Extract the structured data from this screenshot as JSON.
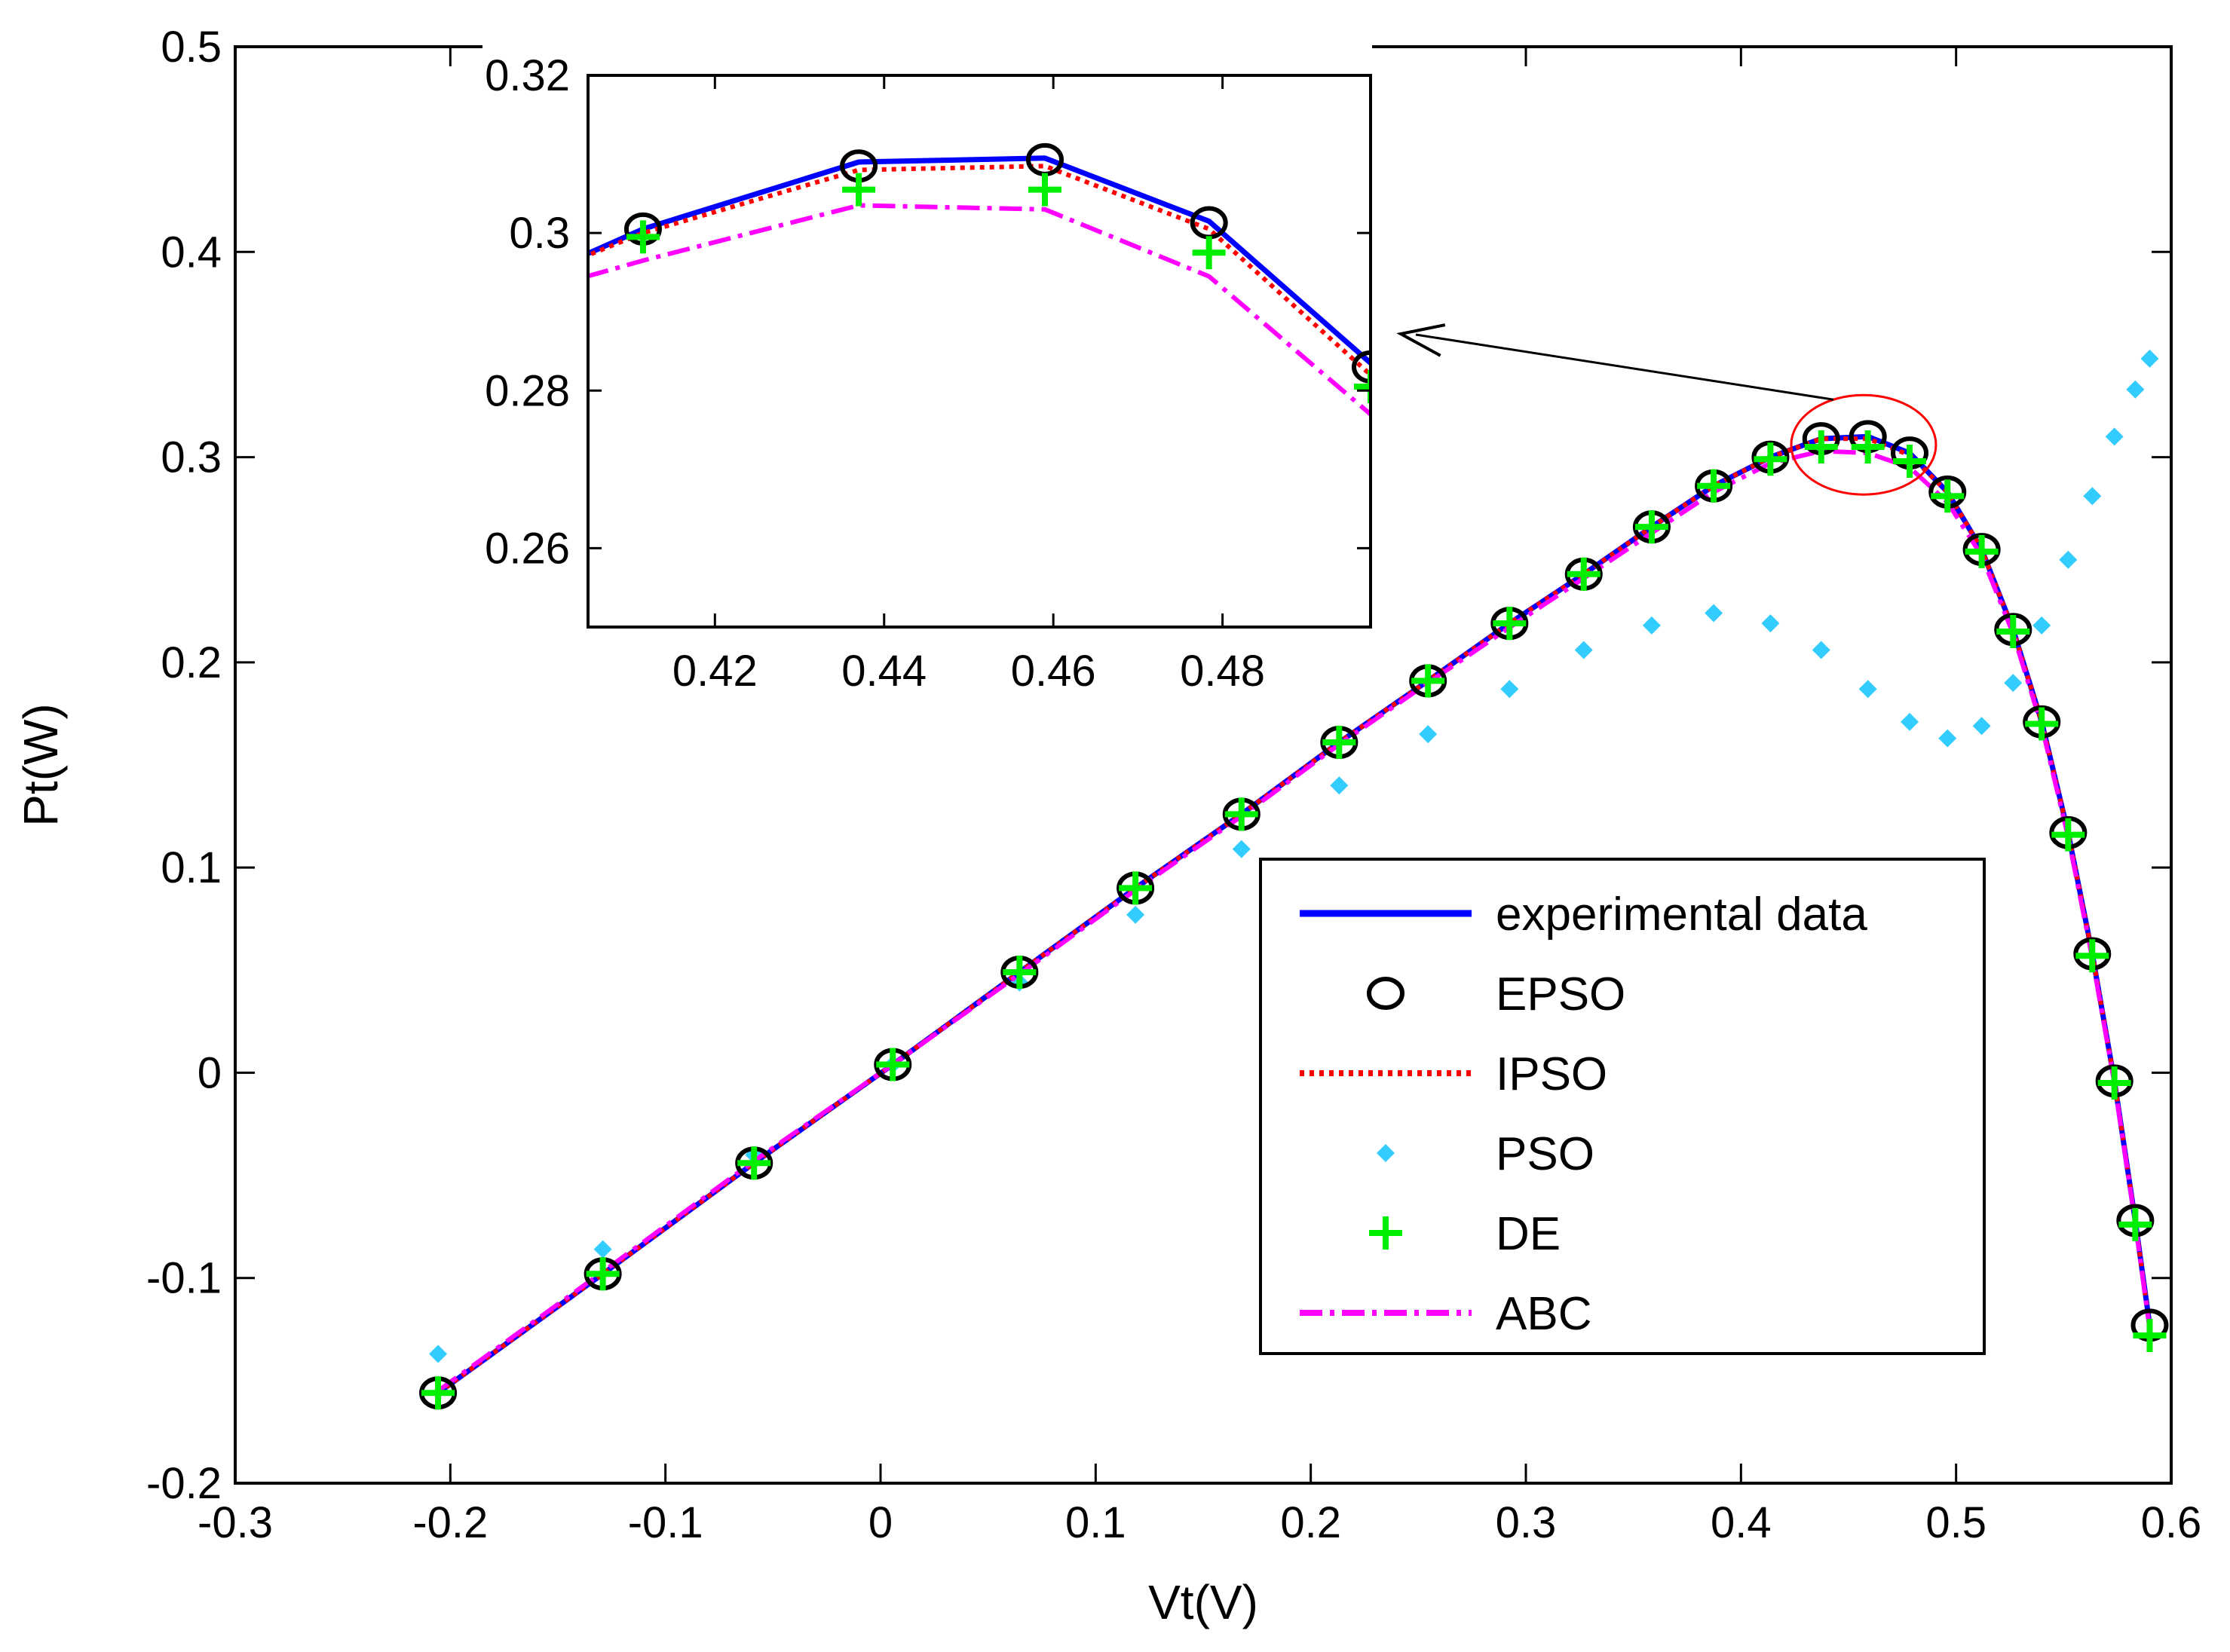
{
  "chart_data": {
    "type": "line",
    "xlabel": "Vt(V)",
    "ylabel": "Pt(W)",
    "xlim": [
      -0.3,
      0.6
    ],
    "ylim": [
      -0.2,
      0.5
    ],
    "xticks": [
      "-0.3",
      "-0.2",
      "-0.1",
      "0",
      "0.1",
      "0.2",
      "0.3",
      "0.4",
      "0.5",
      "0.6"
    ],
    "yticks": [
      "-0.2",
      "-0.1",
      "0",
      "0.1",
      "0.2",
      "0.3",
      "0.4",
      "0.5"
    ],
    "legend_position": "lower-right",
    "series": [
      {
        "name": "experimental data",
        "style": "solid",
        "color": "#0000ff",
        "x": [
          -0.2057,
          -0.1291,
          -0.0588,
          0.0057,
          0.0646,
          0.1185,
          0.1678,
          0.2132,
          0.2545,
          0.2924,
          0.3269,
          0.3585,
          0.3873,
          0.4137,
          0.4373,
          0.459,
          0.4784,
          0.496,
          0.5119,
          0.5265,
          0.5398,
          0.5521,
          0.5633,
          0.5736,
          0.5833,
          0.59
        ],
        "y": [
          -0.156,
          -0.098,
          -0.044,
          0.004,
          0.049,
          0.09,
          0.126,
          0.161,
          0.191,
          0.219,
          0.243,
          0.266,
          0.286,
          0.3,
          0.309,
          0.31,
          0.302,
          0.283,
          0.255,
          0.216,
          0.171,
          0.117,
          0.058,
          -0.004,
          -0.072,
          -0.123
        ]
      },
      {
        "name": "EPSO",
        "style": "circle",
        "color": "#000000",
        "x": [
          -0.2057,
          -0.1291,
          -0.0588,
          0.0057,
          0.0646,
          0.1185,
          0.1678,
          0.2132,
          0.2545,
          0.2924,
          0.3269,
          0.3585,
          0.3873,
          0.4137,
          0.4373,
          0.459,
          0.4784,
          0.496,
          0.5119,
          0.5265,
          0.5398,
          0.5521,
          0.5633,
          0.5736,
          0.5833,
          0.59
        ],
        "y": [
          -0.156,
          -0.098,
          -0.044,
          0.004,
          0.049,
          0.09,
          0.126,
          0.161,
          0.191,
          0.219,
          0.243,
          0.266,
          0.286,
          0.3,
          0.309,
          0.31,
          0.302,
          0.283,
          0.255,
          0.216,
          0.171,
          0.117,
          0.058,
          -0.004,
          -0.072,
          -0.123
        ]
      },
      {
        "name": "IPSO",
        "style": "dotted",
        "color": "#ff0000",
        "x": [
          -0.2057,
          -0.1291,
          -0.0588,
          0.0057,
          0.0646,
          0.1185,
          0.1678,
          0.2132,
          0.2545,
          0.2924,
          0.3269,
          0.3585,
          0.3873,
          0.4137,
          0.4373,
          0.459,
          0.4784,
          0.496,
          0.5119,
          0.5265,
          0.5398,
          0.5521,
          0.5633,
          0.5736,
          0.5833,
          0.59
        ],
        "y": [
          -0.156,
          -0.098,
          -0.044,
          0.004,
          0.049,
          0.09,
          0.126,
          0.161,
          0.191,
          0.219,
          0.243,
          0.266,
          0.286,
          0.3,
          0.309,
          0.309,
          0.301,
          0.283,
          0.255,
          0.216,
          0.171,
          0.117,
          0.058,
          -0.004,
          -0.072,
          -0.124
        ]
      },
      {
        "name": "PSO",
        "style": "dot",
        "color": "#33ccff",
        "x": [
          -0.2057,
          -0.1291,
          -0.0588,
          0.0057,
          0.0646,
          0.1185,
          0.1678,
          0.2132,
          0.2545,
          0.2924,
          0.3269,
          0.3585,
          0.3873,
          0.4137,
          0.4373,
          0.459,
          0.4784,
          0.496,
          0.5119,
          0.5265,
          0.5398,
          0.5521,
          0.5633,
          0.5736,
          0.5833,
          0.59
        ],
        "y": [
          -0.137,
          -0.086,
          -0.04,
          0.004,
          0.044,
          0.077,
          0.109,
          0.14,
          0.165,
          0.187,
          0.206,
          0.218,
          0.224,
          0.219,
          0.206,
          0.187,
          0.171,
          0.163,
          0.169,
          0.19,
          0.218,
          0.25,
          0.281,
          0.31,
          0.333,
          0.348
        ]
      },
      {
        "name": "DE",
        "style": "plus",
        "color": "#00ee00",
        "x": [
          -0.2057,
          -0.1291,
          -0.0588,
          0.0057,
          0.0646,
          0.1185,
          0.1678,
          0.2132,
          0.2545,
          0.2924,
          0.3269,
          0.3585,
          0.3873,
          0.4137,
          0.4373,
          0.459,
          0.4784,
          0.496,
          0.5119,
          0.5265,
          0.5398,
          0.5521,
          0.5633,
          0.5736,
          0.5833,
          0.59
        ],
        "y": [
          -0.156,
          -0.098,
          -0.044,
          0.004,
          0.049,
          0.09,
          0.126,
          0.161,
          0.191,
          0.219,
          0.243,
          0.266,
          0.286,
          0.299,
          0.305,
          0.305,
          0.298,
          0.281,
          0.254,
          0.215,
          0.17,
          0.116,
          0.057,
          -0.005,
          -0.074,
          -0.128
        ]
      },
      {
        "name": "ABC",
        "style": "dashdot",
        "color": "#ff00ff",
        "x": [
          -0.2057,
          -0.1291,
          -0.0588,
          0.0057,
          0.0646,
          0.1185,
          0.1678,
          0.2132,
          0.2545,
          0.2924,
          0.3269,
          0.3585,
          0.3873,
          0.4137,
          0.4373,
          0.459,
          0.4784,
          0.496,
          0.5119,
          0.5265,
          0.5398,
          0.5521,
          0.5633,
          0.5736,
          0.5833,
          0.59
        ],
        "y": [
          -0.155,
          -0.097,
          -0.043,
          0.004,
          0.048,
          0.089,
          0.125,
          0.16,
          0.19,
          0.217,
          0.241,
          0.263,
          0.283,
          0.297,
          0.303,
          0.302,
          0.295,
          0.278,
          0.252,
          0.214,
          0.169,
          0.115,
          0.056,
          -0.005,
          -0.073,
          -0.125
        ]
      }
    ],
    "inset": {
      "xlim": [
        0.405,
        0.4975
      ],
      "ylim": [
        0.25,
        0.32
      ],
      "xticks": [
        "0.42",
        "0.44",
        "0.46",
        "0.48"
      ],
      "yticks": [
        "0.26",
        "0.28",
        "0.3",
        "0.32"
      ],
      "series": [
        {
          "name": "experimental data",
          "x": [
            0.4,
            0.4115,
            0.437,
            0.459,
            0.4784,
            0.4975
          ],
          "y": [
            0.295,
            0.3005,
            0.309,
            0.3095,
            0.3015,
            0.2835
          ]
        },
        {
          "name": "EPSO",
          "x": [
            0.4115,
            0.437,
            0.459,
            0.4784,
            0.4975
          ],
          "y": [
            0.3005,
            0.3085,
            0.3093,
            0.3013,
            0.283
          ]
        },
        {
          "name": "IPSO",
          "x": [
            0.4,
            0.4115,
            0.437,
            0.459,
            0.4784,
            0.4975
          ],
          "y": [
            0.295,
            0.3,
            0.308,
            0.3085,
            0.3005,
            0.282
          ]
        },
        {
          "name": "DE",
          "x": [
            0.4115,
            0.437,
            0.459,
            0.4784,
            0.4975
          ],
          "y": [
            0.2995,
            0.3055,
            0.3055,
            0.2975,
            0.2805
          ]
        },
        {
          "name": "ABC",
          "x": [
            0.4,
            0.4115,
            0.437,
            0.459,
            0.4784,
            0.4975
          ],
          "y": [
            0.293,
            0.2965,
            0.3035,
            0.303,
            0.2945,
            0.277
          ]
        }
      ]
    },
    "annotation": "circled region around the maximum power point with arrow pointing to the zoomed inset"
  }
}
